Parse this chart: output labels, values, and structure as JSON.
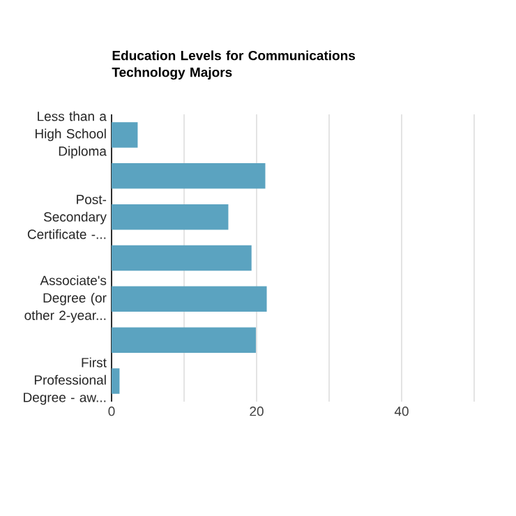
{
  "chart_data": {
    "type": "bar",
    "orientation": "horizontal",
    "title": "Education Levels for Communications Technology Majors",
    "categories": [
      "Less than a High School Diploma",
      null,
      "Post-Secondary Certificate -...",
      null,
      "Associate's Degree (or other 2-year...",
      null,
      "First Professional Degree - aw..."
    ],
    "values": [
      3.6,
      21.2,
      16.1,
      19.3,
      21.4,
      19.9,
      1.1
    ],
    "color": "#5ba3c0",
    "xlim": [
      0,
      50
    ],
    "xticks": [
      0,
      {
        "value": 10,
        "label": null
      },
      20,
      {
        "value": 30,
        "label": null
      },
      40,
      {
        "value": 50,
        "label": null
      }
    ],
    "grid": "x"
  }
}
